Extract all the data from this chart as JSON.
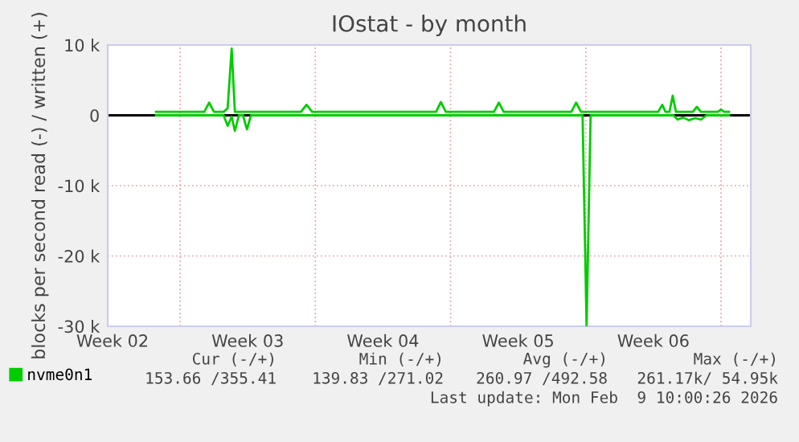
{
  "chart_data": {
    "type": "line",
    "title": "IOstat - by month",
    "ylabel": "blocks per second read (-) / written (+)",
    "xlim": [
      "2026-01-08T06:00",
      "2026-02-10T13:00"
    ],
    "ylim": [
      -30000,
      10000
    ],
    "xticks": [
      {
        "value": "2026-01-08T12:00",
        "label": "Week 02"
      },
      {
        "value": "2026-01-12T00:00",
        "label": null
      },
      {
        "value": "2026-01-15T12:00",
        "label": "Week 03"
      },
      {
        "value": "2026-01-19T00:00",
        "label": null
      },
      {
        "value": "2026-01-22T12:00",
        "label": "Week 04"
      },
      {
        "value": "2026-01-26T00:00",
        "label": null
      },
      {
        "value": "2026-01-29T12:00",
        "label": "Week 05"
      },
      {
        "value": "2026-02-02T00:00",
        "label": null
      },
      {
        "value": "2026-02-05T12:00",
        "label": "Week 06"
      },
      {
        "value": "2026-02-09T00:00",
        "label": null
      }
    ],
    "yticks": [
      {
        "value": -30000,
        "label": "-30 k"
      },
      {
        "value": -20000,
        "label": "-20 k"
      },
      {
        "value": -10000,
        "label": "-10 k"
      },
      0,
      {
        "value": 10000,
        "label": "10 k"
      }
    ],
    "grid": true,
    "legend": "bottom left",
    "ref_lines": [
      {
        "axis": "y",
        "value": 0,
        "color": "#000000"
      }
    ],
    "series": [
      {
        "name": "nvme0n1",
        "color": "#00cc00",
        "x": [
          "2026-01-10T18:00",
          "2026-01-13T06:00",
          "2026-01-13T12:00",
          "2026-01-13T18:00",
          "2026-01-14T06:00",
          "2026-01-14T11:00",
          "2026-01-14T16:00",
          "2026-01-14T20:00",
          "2026-01-18T06:00",
          "2026-01-18T13:00",
          "2026-01-18T20:00",
          "2026-01-25T06:00",
          "2026-01-25T12:00",
          "2026-01-25T18:00",
          "2026-01-28T06:00",
          "2026-01-28T12:00",
          "2026-01-28T18:00",
          "2026-02-01T06:00",
          "2026-02-01T12:00",
          "2026-02-01T18:00",
          "2026-02-05T18:00",
          "2026-02-05T23:00",
          "2026-02-06T03:00",
          "2026-02-06T08:00",
          "2026-02-06T12:00",
          "2026-02-06T16:00",
          "2026-02-07T13:00",
          "2026-02-07T18:00",
          "2026-02-07T23:00",
          "2026-02-08T20:00",
          "2026-02-09T00:00",
          "2026-02-09T04:00",
          "2026-02-09T10:00"
        ],
        "values": [
          500,
          500,
          1800,
          500,
          500,
          1000,
          9500,
          500,
          500,
          1500,
          500,
          500,
          1900,
          500,
          500,
          1800,
          500,
          500,
          1800,
          500,
          500,
          1500,
          500,
          500,
          2800,
          500,
          500,
          1200,
          500,
          500,
          800,
          500,
          500
        ]
      },
      {
        "color": "#00cc00",
        "x": [
          "2026-01-10T18:00",
          "2026-01-14T06:00",
          "2026-01-14T11:00",
          "2026-01-14T16:00",
          "2026-01-14T20:00",
          "2026-01-15T01:00",
          "2026-01-15T06:00",
          "2026-01-15T11:00",
          "2026-01-15T16:00",
          "2026-02-01T20:00",
          "2026-02-02T01:00",
          "2026-02-02T06:00",
          "2026-02-06T13:00",
          "2026-02-06T18:00",
          "2026-02-07T01:00",
          "2026-02-07T08:00",
          "2026-02-07T16:00",
          "2026-02-07T23:00",
          "2026-02-08T06:00",
          "2026-02-09T10:00"
        ],
        "values": [
          0,
          0,
          -1500,
          -200,
          -2200,
          0,
          0,
          -2000,
          0,
          0,
          -29900,
          0,
          0,
          -600,
          -300,
          -700,
          -400,
          -600,
          0,
          0
        ]
      }
    ],
    "annotations": [
      "Cur (-/+)",
      "Min (-/+)",
      "Avg (-/+)",
      "Max (-/+)",
      "153.66 /355.41",
      "139.83 /271.02",
      "260.97 /492.58",
      "261.17k/ 54.95k",
      "Last update: Mon Feb  9 10:00:26 2026"
    ]
  }
}
